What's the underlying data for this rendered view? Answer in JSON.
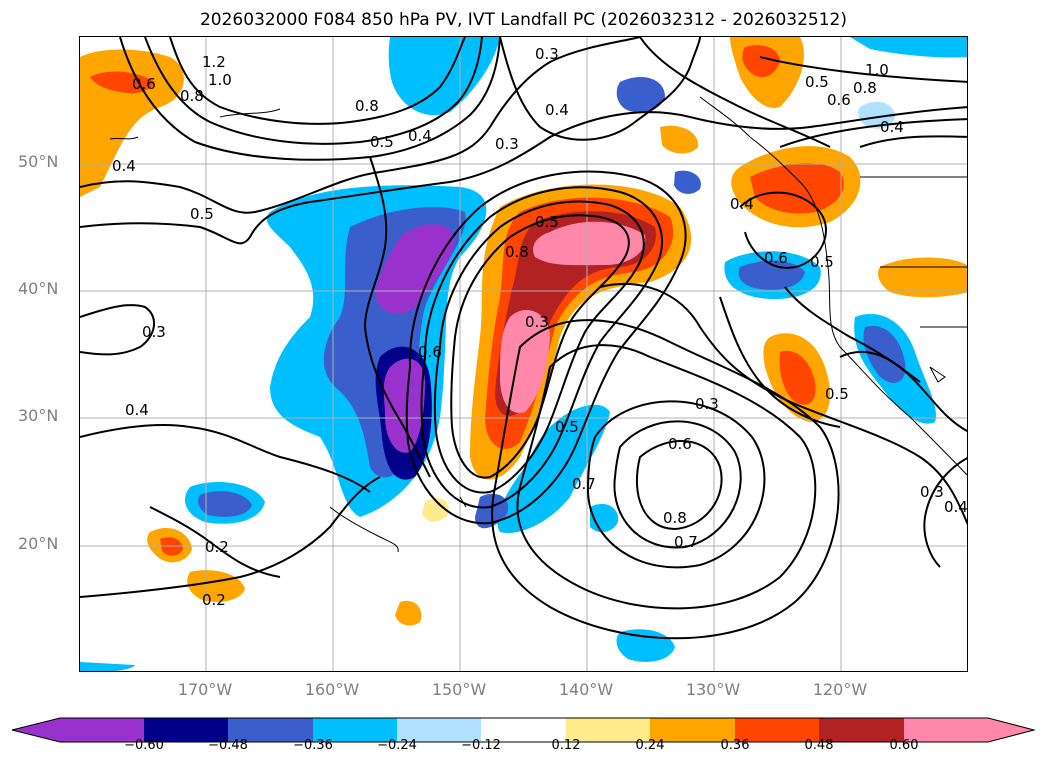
{
  "title": "2026032000 F084 850 hPa PV, IVT Landfall PC (2026032312 - 2026032512)",
  "lat_labels": [
    "50°N",
    "40°N",
    "30°N",
    "20°N"
  ],
  "lon_labels": [
    "170°W",
    "160°W",
    "150°W",
    "140°W",
    "130°W",
    "120°W"
  ],
  "colorbar": {
    "ticks": [
      "−0.60",
      "−0.48",
      "−0.36",
      "−0.24",
      "−0.12",
      "0.12",
      "0.24",
      "0.36",
      "0.48",
      "0.60"
    ],
    "colors": [
      "#9932cc",
      "#00008b",
      "#3a5fcd",
      "#00bfff",
      "#b0e2ff",
      "#ffffff",
      "#ffeb8b",
      "#ffa500",
      "#ff4500",
      "#b22222",
      "#ff88aa",
      "#ff88aa"
    ]
  },
  "contour_labels": [
    "1.2",
    "1.0",
    "0.8",
    "0.6",
    "0.5",
    "0.4",
    "0.3",
    "0.2",
    "0.7"
  ],
  "grid": true,
  "colors": {
    "gridline": "#b0b0b0",
    "coastline": "#000000"
  }
}
